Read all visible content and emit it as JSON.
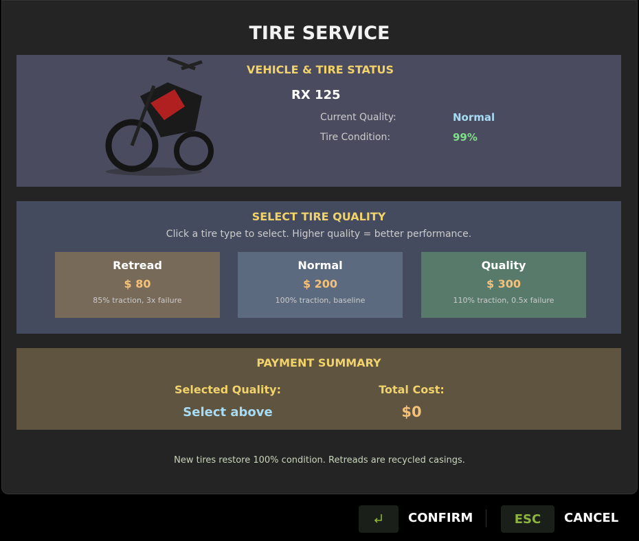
{
  "title": "TIRE SERVICE",
  "status": {
    "heading": "VEHICLE & TIRE STATUS",
    "vehicle": "RX 125",
    "quality_label": "Current Quality:",
    "quality_value": "Normal",
    "condition_label": "Tire Condition:",
    "condition_value": "99%"
  },
  "select": {
    "heading": "SELECT TIRE QUALITY",
    "hint": "Click a tire type to select. Higher quality = better performance.",
    "options": [
      {
        "name": "Retread",
        "price": "$ 80",
        "desc": "85% traction, 3x failure",
        "color": "#786a58"
      },
      {
        "name": "Normal",
        "price": "$ 200",
        "desc": "100% traction, baseline",
        "color": "#5b6a7e"
      },
      {
        "name": "Quality",
        "price": "$ 300",
        "desc": "110% traction, 0.5x failure",
        "color": "#587a6a"
      }
    ]
  },
  "payment": {
    "heading": "PAYMENT SUMMARY",
    "selected_label": "Selected Quality:",
    "selected_value": "Select above",
    "total_label": "Total Cost:",
    "total_value": "$0"
  },
  "footer_note": "New tires restore 100% condition. Retreads are recycled casings.",
  "actions": {
    "confirm_key_icon": "enter-icon",
    "confirm": "CONFIRM",
    "cancel_key": "ESC",
    "cancel": "CANCEL"
  }
}
